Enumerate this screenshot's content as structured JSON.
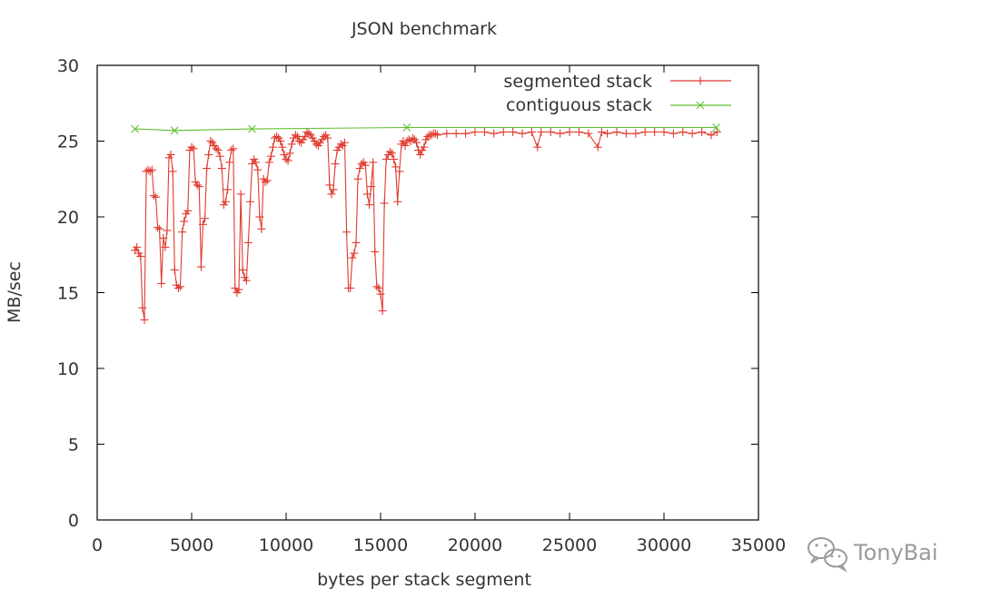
{
  "chart_data": {
    "type": "line",
    "title": "JSON benchmark",
    "xlabel": "bytes per stack segment",
    "ylabel": "MB/sec",
    "xlim": [
      0,
      35000
    ],
    "ylim": [
      0,
      30
    ],
    "x_ticks": [
      0,
      5000,
      10000,
      15000,
      20000,
      25000,
      30000,
      35000
    ],
    "y_ticks": [
      0,
      5,
      10,
      15,
      20,
      25,
      30
    ],
    "grid": false,
    "legend_position": "top-right",
    "series": [
      {
        "name": "segmented stack",
        "color": "#e03a2e",
        "marker": "plus",
        "points": [
          [
            2000,
            17.8
          ],
          [
            2100,
            18.0
          ],
          [
            2200,
            17.6
          ],
          [
            2300,
            17.4
          ],
          [
            2400,
            14.0
          ],
          [
            2500,
            13.2
          ],
          [
            2600,
            23.0
          ],
          [
            2700,
            23.1
          ],
          [
            2800,
            23.0
          ],
          [
            2900,
            23.1
          ],
          [
            3000,
            21.4
          ],
          [
            3100,
            21.3
          ],
          [
            3200,
            19.3
          ],
          [
            3300,
            19.2
          ],
          [
            3400,
            15.6
          ],
          [
            3500,
            18.6
          ],
          [
            3600,
            18.0
          ],
          [
            3700,
            19.1
          ],
          [
            3800,
            23.9
          ],
          [
            3900,
            24.1
          ],
          [
            4000,
            23.0
          ],
          [
            4100,
            16.5
          ],
          [
            4200,
            15.5
          ],
          [
            4300,
            15.3
          ],
          [
            4400,
            15.4
          ],
          [
            4500,
            19.0
          ],
          [
            4600,
            19.7
          ],
          [
            4700,
            20.2
          ],
          [
            4800,
            20.4
          ],
          [
            4900,
            24.4
          ],
          [
            5000,
            24.6
          ],
          [
            5100,
            24.5
          ],
          [
            5200,
            22.3
          ],
          [
            5300,
            22.1
          ],
          [
            5400,
            22.0
          ],
          [
            5500,
            16.7
          ],
          [
            5600,
            19.5
          ],
          [
            5700,
            19.9
          ],
          [
            5800,
            23.2
          ],
          [
            5900,
            24.1
          ],
          [
            6000,
            25.0
          ],
          [
            6100,
            24.9
          ],
          [
            6200,
            24.7
          ],
          [
            6300,
            24.5
          ],
          [
            6400,
            24.4
          ],
          [
            6500,
            24.0
          ],
          [
            6600,
            23.2
          ],
          [
            6700,
            20.8
          ],
          [
            6800,
            21.0
          ],
          [
            6900,
            21.8
          ],
          [
            7000,
            23.6
          ],
          [
            7100,
            24.4
          ],
          [
            7200,
            24.5
          ],
          [
            7300,
            15.3
          ],
          [
            7400,
            15.0
          ],
          [
            7500,
            15.2
          ],
          [
            7600,
            21.5
          ],
          [
            7700,
            16.5
          ],
          [
            7800,
            16.0
          ],
          [
            7900,
            15.8
          ],
          [
            8000,
            18.3
          ],
          [
            8100,
            21.0
          ],
          [
            8200,
            23.5
          ],
          [
            8300,
            23.8
          ],
          [
            8400,
            23.6
          ],
          [
            8500,
            23.1
          ],
          [
            8600,
            20.0
          ],
          [
            8700,
            19.2
          ],
          [
            8800,
            22.5
          ],
          [
            8900,
            22.3
          ],
          [
            9000,
            22.4
          ],
          [
            9100,
            23.6
          ],
          [
            9200,
            24.0
          ],
          [
            9300,
            24.6
          ],
          [
            9400,
            25.2
          ],
          [
            9500,
            25.3
          ],
          [
            9600,
            25.2
          ],
          [
            9700,
            25.0
          ],
          [
            9800,
            24.6
          ],
          [
            9900,
            24.1
          ],
          [
            10000,
            23.8
          ],
          [
            10100,
            23.7
          ],
          [
            10200,
            24.2
          ],
          [
            10300,
            24.8
          ],
          [
            10400,
            25.2
          ],
          [
            10500,
            25.4
          ],
          [
            10600,
            25.3
          ],
          [
            10700,
            25.0
          ],
          [
            10800,
            24.9
          ],
          [
            10900,
            25.1
          ],
          [
            11000,
            25.3
          ],
          [
            11100,
            25.6
          ],
          [
            11200,
            25.5
          ],
          [
            11300,
            25.4
          ],
          [
            11400,
            25.2
          ],
          [
            11500,
            25.0
          ],
          [
            11600,
            24.8
          ],
          [
            11700,
            24.7
          ],
          [
            11800,
            24.9
          ],
          [
            11900,
            25.1
          ],
          [
            12000,
            25.3
          ],
          [
            12100,
            25.4
          ],
          [
            12200,
            25.2
          ],
          [
            12300,
            22.1
          ],
          [
            12400,
            21.5
          ],
          [
            12500,
            21.8
          ],
          [
            12600,
            23.5
          ],
          [
            12700,
            24.4
          ],
          [
            12800,
            24.6
          ],
          [
            12900,
            24.8
          ],
          [
            13000,
            24.7
          ],
          [
            13100,
            24.9
          ],
          [
            13200,
            19.0
          ],
          [
            13300,
            15.3
          ],
          [
            13400,
            15.3
          ],
          [
            13500,
            17.3
          ],
          [
            13600,
            17.6
          ],
          [
            13700,
            18.3
          ],
          [
            13800,
            22.5
          ],
          [
            13900,
            23.2
          ],
          [
            14000,
            23.5
          ],
          [
            14100,
            23.6
          ],
          [
            14200,
            23.4
          ],
          [
            14300,
            21.5
          ],
          [
            14400,
            20.8
          ],
          [
            14500,
            22.0
          ],
          [
            14600,
            23.6
          ],
          [
            14700,
            17.7
          ],
          [
            14800,
            15.4
          ],
          [
            14900,
            15.3
          ],
          [
            15000,
            14.9
          ],
          [
            15100,
            13.8
          ],
          [
            15200,
            20.9
          ],
          [
            15300,
            23.8
          ],
          [
            15400,
            24.1
          ],
          [
            15500,
            24.3
          ],
          [
            15600,
            24.2
          ],
          [
            15700,
            23.8
          ],
          [
            15800,
            23.3
          ],
          [
            15900,
            21.0
          ],
          [
            16000,
            23.0
          ],
          [
            16100,
            24.8
          ],
          [
            16200,
            25.0
          ],
          [
            16300,
            24.7
          ],
          [
            16400,
            25.0
          ],
          [
            16500,
            25.1
          ],
          [
            16600,
            25.0
          ],
          [
            16700,
            25.2
          ],
          [
            16800,
            25.1
          ],
          [
            16900,
            24.9
          ],
          [
            17000,
            24.4
          ],
          [
            17100,
            24.1
          ],
          [
            17200,
            24.4
          ],
          [
            17300,
            24.6
          ],
          [
            17400,
            25.1
          ],
          [
            17500,
            25.3
          ],
          [
            17600,
            25.4
          ],
          [
            17700,
            25.4
          ],
          [
            17800,
            25.5
          ],
          [
            17900,
            25.5
          ],
          [
            18000,
            25.4
          ],
          [
            18500,
            25.5
          ],
          [
            19000,
            25.5
          ],
          [
            19500,
            25.5
          ],
          [
            20000,
            25.6
          ],
          [
            20500,
            25.6
          ],
          [
            21000,
            25.5
          ],
          [
            21500,
            25.6
          ],
          [
            22000,
            25.6
          ],
          [
            22500,
            25.5
          ],
          [
            23000,
            25.6
          ],
          [
            23300,
            24.6
          ],
          [
            23500,
            25.6
          ],
          [
            24000,
            25.6
          ],
          [
            24500,
            25.5
          ],
          [
            25000,
            25.6
          ],
          [
            25500,
            25.6
          ],
          [
            26000,
            25.5
          ],
          [
            26500,
            24.6
          ],
          [
            26700,
            25.6
          ],
          [
            27000,
            25.5
          ],
          [
            27500,
            25.6
          ],
          [
            28000,
            25.5
          ],
          [
            28500,
            25.5
          ],
          [
            29000,
            25.6
          ],
          [
            29500,
            25.6
          ],
          [
            30000,
            25.6
          ],
          [
            30500,
            25.5
          ],
          [
            31000,
            25.6
          ],
          [
            31500,
            25.5
          ],
          [
            32000,
            25.6
          ],
          [
            32500,
            25.4
          ],
          [
            32800,
            25.6
          ]
        ]
      },
      {
        "name": "contiguous stack",
        "color": "#5fbf2f",
        "marker": "x",
        "points": [
          [
            2000,
            25.8
          ],
          [
            4096,
            25.7
          ],
          [
            8192,
            25.8
          ],
          [
            16384,
            25.9
          ],
          [
            32768,
            25.9
          ]
        ]
      }
    ]
  },
  "watermark": {
    "text": "TonyBai",
    "icon": "wechat-icon"
  }
}
